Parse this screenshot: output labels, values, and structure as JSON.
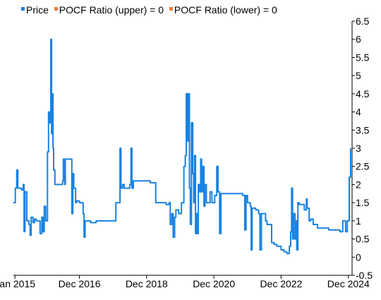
{
  "chart_data": {
    "type": "line",
    "title": "",
    "legend": [
      {
        "label": "Price",
        "color": "#1a82e0"
      },
      {
        "label": "POCF Ratio (upper) = 0",
        "color": "#f07a3a"
      },
      {
        "label": "POCF Ratio (lower) = 0",
        "color": "#f07a3a"
      }
    ],
    "legend_position": "top-left",
    "grid": false,
    "x_range": [
      "2014-12-15",
      "2025-01-10"
    ],
    "x_ticks": [
      {
        "label": "Jan 2015",
        "date": "2015-01-01"
      },
      {
        "label": "Dec 2016",
        "date": "2016-12-01"
      },
      {
        "label": "Dec 2018",
        "date": "2018-12-01"
      },
      {
        "label": "Dec 2020",
        "date": "2020-12-01"
      },
      {
        "label": "Dec 2022",
        "date": "2022-12-01"
      },
      {
        "label": "Dec 2024",
        "date": "2024-12-01"
      }
    ],
    "y_range": [
      -0.5,
      6.5
    ],
    "y_ticks": [
      "-0.5",
      "0",
      "0.5",
      "1",
      "1.5",
      "2",
      "2.5",
      "3",
      "3.5",
      "4",
      "4.5",
      "5",
      "5.5",
      "6",
      "6.5"
    ],
    "series": [
      {
        "name": "Price",
        "color": "#1a82e0",
        "points": [
          [
            "2014-12-15",
            1.5
          ],
          [
            "2015-01-05",
            1.9
          ],
          [
            "2015-01-20",
            2.4
          ],
          [
            "2015-02-01",
            1.9
          ],
          [
            "2015-03-15",
            1.85
          ],
          [
            "2015-04-01",
            2.0
          ],
          [
            "2015-04-10",
            0.7
          ],
          [
            "2015-04-20",
            1.8
          ],
          [
            "2015-05-10",
            1.0
          ],
          [
            "2015-06-01",
            0.9
          ],
          [
            "2015-06-15",
            0.6
          ],
          [
            "2015-06-25",
            1.1
          ],
          [
            "2015-07-15",
            0.95
          ],
          [
            "2015-08-01",
            1.05
          ],
          [
            "2015-08-20",
            1.0
          ],
          [
            "2015-09-20",
            1.0
          ],
          [
            "2015-10-01",
            0.65
          ],
          [
            "2015-10-20",
            1.1
          ],
          [
            "2015-11-01",
            0.7
          ],
          [
            "2015-11-15",
            1.4
          ],
          [
            "2015-12-01",
            1.0
          ],
          [
            "2015-12-20",
            2.9
          ],
          [
            "2016-01-01",
            4.0
          ],
          [
            "2016-01-15",
            3.7
          ],
          [
            "2016-01-25",
            6.0
          ],
          [
            "2016-02-03",
            3.4
          ],
          [
            "2016-02-10",
            4.5
          ],
          [
            "2016-02-18",
            3.0
          ],
          [
            "2016-02-25",
            2.4
          ],
          [
            "2016-03-10",
            2.0
          ],
          [
            "2016-04-15",
            2.0
          ],
          [
            "2016-05-20",
            2.0
          ],
          [
            "2016-06-01",
            2.1
          ],
          [
            "2016-06-10",
            2.7
          ],
          [
            "2016-06-25",
            2.0
          ],
          [
            "2016-07-01",
            2.7
          ],
          [
            "2016-09-01",
            2.7
          ],
          [
            "2016-09-10",
            1.2
          ],
          [
            "2016-09-20",
            2.3
          ],
          [
            "2016-10-01",
            1.9
          ],
          [
            "2016-10-20",
            1.5
          ],
          [
            "2016-11-01",
            1.55
          ],
          [
            "2016-12-01",
            1.5
          ],
          [
            "2017-01-10",
            1.2
          ],
          [
            "2017-01-20",
            0.55
          ],
          [
            "2017-02-01",
            1.0
          ],
          [
            "2017-04-01",
            0.95
          ],
          [
            "2017-06-01",
            1.0
          ],
          [
            "2017-09-01",
            1.0
          ],
          [
            "2017-12-01",
            1.0
          ],
          [
            "2018-01-01",
            1.5
          ],
          [
            "2018-02-10",
            1.5
          ],
          [
            "2018-02-15",
            3.0
          ],
          [
            "2018-02-25",
            1.9
          ],
          [
            "2018-03-15",
            2.0
          ],
          [
            "2018-04-01",
            1.9
          ],
          [
            "2018-06-01",
            2.0
          ],
          [
            "2018-06-15",
            3.0
          ],
          [
            "2018-06-25",
            1.9
          ],
          [
            "2018-07-10",
            2.1
          ],
          [
            "2018-12-01",
            2.1
          ],
          [
            "2019-01-10",
            2.05
          ],
          [
            "2019-03-01",
            2.05
          ],
          [
            "2019-03-10",
            1.5
          ],
          [
            "2019-05-01",
            1.5
          ],
          [
            "2019-07-01",
            1.45
          ],
          [
            "2019-08-01",
            1.5
          ],
          [
            "2019-08-15",
            0.9
          ],
          [
            "2019-09-01",
            1.2
          ],
          [
            "2019-09-15",
            0.55
          ],
          [
            "2019-10-01",
            1.1
          ],
          [
            "2019-10-15",
            1.3
          ],
          [
            "2019-11-15",
            1.2
          ],
          [
            "2019-12-15",
            1.5
          ],
          [
            "2020-01-10",
            2.5
          ],
          [
            "2020-01-25",
            2.8
          ],
          [
            "2020-02-05",
            4.5
          ],
          [
            "2020-02-15",
            3.2
          ],
          [
            "2020-02-25",
            4.5
          ],
          [
            "2020-03-10",
            1.9
          ],
          [
            "2020-03-20",
            0.9
          ],
          [
            "2020-04-01",
            3.7
          ],
          [
            "2020-04-15",
            2.3
          ],
          [
            "2020-04-25",
            1.5
          ],
          [
            "2020-05-05",
            2.8
          ],
          [
            "2020-05-15",
            0.65
          ],
          [
            "2020-05-25",
            1.2
          ],
          [
            "2020-06-05",
            0.65
          ],
          [
            "2020-06-15",
            2.0
          ],
          [
            "2020-06-25",
            1.8
          ],
          [
            "2020-07-10",
            2.7
          ],
          [
            "2020-07-20",
            1.8
          ],
          [
            "2020-08-01",
            2.5
          ],
          [
            "2020-08-15",
            1.4
          ],
          [
            "2020-08-25",
            2.0
          ],
          [
            "2020-09-10",
            1.5
          ],
          [
            "2020-10-01",
            1.5
          ],
          [
            "2020-10-20",
            1.8
          ],
          [
            "2020-11-10",
            1.5
          ],
          [
            "2020-12-10",
            1.7
          ],
          [
            "2021-01-01",
            2.5
          ],
          [
            "2021-01-15",
            1.8
          ],
          [
            "2021-02-01",
            0.65
          ],
          [
            "2021-02-15",
            1.75
          ],
          [
            "2021-06-01",
            1.75
          ],
          [
            "2021-09-01",
            1.75
          ],
          [
            "2021-10-10",
            1.7
          ],
          [
            "2021-11-01",
            0.75
          ],
          [
            "2021-11-15",
            1.7
          ],
          [
            "2021-12-01",
            1.5
          ],
          [
            "2022-01-01",
            1.4
          ],
          [
            "2022-01-10",
            0.2
          ],
          [
            "2022-01-20",
            1.35
          ],
          [
            "2022-03-01",
            1.3
          ],
          [
            "2022-04-01",
            1.2
          ],
          [
            "2022-04-15",
            0.2
          ],
          [
            "2022-05-01",
            1.2
          ],
          [
            "2022-06-01",
            1.2
          ],
          [
            "2022-06-15",
            1.0
          ],
          [
            "2022-07-01",
            0.9
          ],
          [
            "2022-08-01",
            0.9
          ],
          [
            "2022-08-20",
            0.4
          ],
          [
            "2022-09-15",
            0.35
          ],
          [
            "2022-10-15",
            0.3
          ],
          [
            "2022-12-01",
            0.2
          ],
          [
            "2023-01-01",
            0.15
          ],
          [
            "2023-02-01",
            0.1
          ],
          [
            "2023-03-01",
            0.3
          ],
          [
            "2023-03-15",
            0.7
          ],
          [
            "2023-03-25",
            1.9
          ],
          [
            "2023-04-05",
            0.5
          ],
          [
            "2023-04-15",
            1.2
          ],
          [
            "2023-05-01",
            0.5
          ],
          [
            "2023-05-10",
            1.0
          ],
          [
            "2023-05-20",
            0.2
          ],
          [
            "2023-06-01",
            1.5
          ],
          [
            "2023-06-15",
            1.45
          ],
          [
            "2023-08-01",
            1.45
          ],
          [
            "2023-08-10",
            1.3
          ],
          [
            "2023-09-01",
            1.6
          ],
          [
            "2023-09-10",
            1.35
          ],
          [
            "2023-10-01",
            1.0
          ],
          [
            "2023-10-20",
            1.05
          ],
          [
            "2023-11-15",
            0.9
          ],
          [
            "2024-01-01",
            0.8
          ],
          [
            "2024-03-01",
            0.8
          ],
          [
            "2024-05-01",
            0.75
          ],
          [
            "2024-07-01",
            0.75
          ],
          [
            "2024-09-01",
            0.7
          ],
          [
            "2024-10-01",
            1.0
          ],
          [
            "2024-11-01",
            0.7
          ],
          [
            "2024-11-20",
            1.0
          ],
          [
            "2024-12-10",
            2.2
          ],
          [
            "2024-12-25",
            3.0
          ]
        ]
      },
      {
        "name": "POCF Ratio (upper) = 0",
        "color": "#f07a3a",
        "points": []
      },
      {
        "name": "POCF Ratio (lower) = 0",
        "color": "#f07a3a",
        "points": []
      }
    ]
  }
}
